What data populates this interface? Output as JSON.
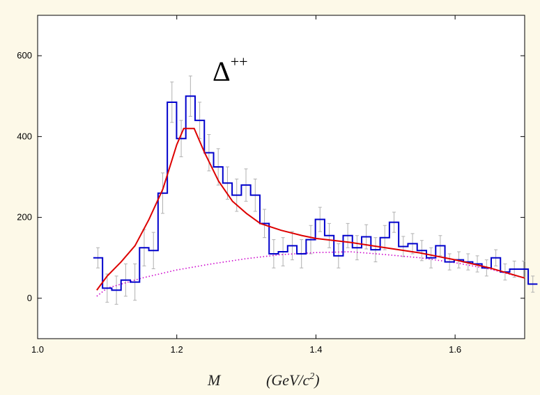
{
  "chart_data": {
    "type": "histogram",
    "title": "Δ",
    "title_superscript": "++",
    "xlabel_var": "M",
    "xlabel_units": "(GeV/c",
    "xlabel_units_exp": "2",
    "xlabel_units_close": ")",
    "xlim": [
      1.0,
      1.7
    ],
    "ylim": [
      -100,
      700
    ],
    "xticks": [
      1.0,
      1.2,
      1.4,
      1.6
    ],
    "xtick_labels": [
      "1.0",
      "1.2",
      "1.4",
      "1.6"
    ],
    "yticks": [
      0,
      200,
      400,
      600
    ],
    "ytick_labels": [
      "0",
      "200",
      "400",
      "600"
    ],
    "grid": false,
    "bin_width": 0.0133,
    "series": [
      {
        "kind": "histogram",
        "color": "#0000cc",
        "bin_start": 1.08,
        "values": [
          100,
          25,
          20,
          45,
          40,
          125,
          118,
          260,
          485,
          395,
          500,
          440,
          360,
          325,
          285,
          255,
          280,
          255,
          185,
          110,
          115,
          130,
          110,
          145,
          195,
          155,
          105,
          155,
          125,
          152,
          120,
          150,
          188,
          128,
          135,
          118,
          100,
          130,
          90,
          95,
          90,
          85,
          75,
          100,
          65,
          72,
          72,
          35
        ],
        "errors": [
          25,
          35,
          35,
          40,
          45,
          45,
          45,
          50,
          50,
          45,
          50,
          45,
          45,
          45,
          40,
          40,
          40,
          40,
          35,
          35,
          35,
          35,
          35,
          35,
          30,
          30,
          30,
          30,
          30,
          30,
          30,
          30,
          25,
          25,
          25,
          25,
          25,
          25,
          20,
          20,
          20,
          20,
          20,
          20,
          20,
          20,
          20,
          20
        ]
      },
      {
        "kind": "fit",
        "color": "#dd0000",
        "x": [
          1.085,
          1.1,
          1.12,
          1.14,
          1.16,
          1.18,
          1.2,
          1.21,
          1.225,
          1.24,
          1.26,
          1.28,
          1.3,
          1.32,
          1.35,
          1.38,
          1.4,
          1.45,
          1.5,
          1.55,
          1.6,
          1.65,
          1.7
        ],
        "y": [
          20,
          55,
          90,
          130,
          195,
          270,
          380,
          420,
          420,
          360,
          290,
          240,
          210,
          185,
          168,
          155,
          148,
          138,
          125,
          112,
          95,
          75,
          50
        ]
      },
      {
        "kind": "background",
        "color": "#cc00cc",
        "x": [
          1.085,
          1.1,
          1.15,
          1.2,
          1.25,
          1.3,
          1.35,
          1.4,
          1.45,
          1.5,
          1.55,
          1.6,
          1.65,
          1.7
        ],
        "y": [
          5,
          25,
          50,
          70,
          85,
          98,
          108,
          113,
          115,
          108,
          100,
          88,
          72,
          50
        ]
      }
    ]
  }
}
